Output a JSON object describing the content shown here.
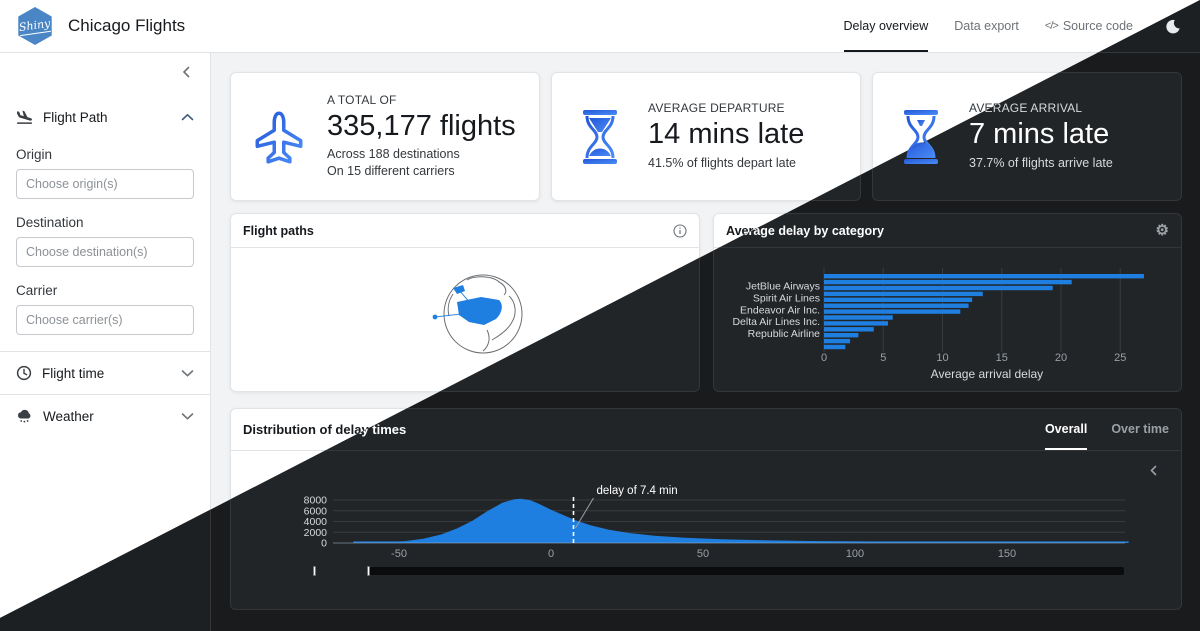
{
  "navbar": {
    "logo_text": "Shiny",
    "brand": "Chicago Flights",
    "tabs": [
      {
        "label": "Delay overview",
        "active": true
      },
      {
        "label": "Data export",
        "active": false
      },
      {
        "label": "Source code",
        "prefix": "</>",
        "active": false
      }
    ]
  },
  "sidebar": {
    "groups": {
      "flight_path": {
        "label": "Flight Path",
        "expanded": true
      },
      "flight_time": {
        "label": "Flight time",
        "expanded": false
      },
      "weather": {
        "label": "Weather",
        "expanded": false
      }
    },
    "fields": {
      "origin": {
        "label": "Origin",
        "placeholder": "Choose origin(s)",
        "value": ""
      },
      "destination": {
        "label": "Destination",
        "placeholder": "Choose destination(s)",
        "value": ""
      },
      "carrier": {
        "label": "Carrier",
        "placeholder": "Choose carrier(s)",
        "value": ""
      }
    }
  },
  "value_boxes": {
    "total": {
      "title": "A TOTAL OF",
      "value": "335,177 flights",
      "line1": "Across 188 destinations",
      "line2": "On 15 different carriers",
      "icon": "plane-icon"
    },
    "departure": {
      "title": "AVERAGE DEPARTURE",
      "value": "14 mins late",
      "line1": "41.5% of flights depart late",
      "icon": "hourglass-start-icon"
    },
    "arrival": {
      "title": "AVERAGE ARRIVAL",
      "value": "7 mins late",
      "line1": "37.7% of flights arrive late",
      "icon": "hourglass-end-icon"
    }
  },
  "cards": {
    "flight_paths": {
      "title": "Flight paths"
    },
    "avg_delay": {
      "title": "Average delay by category"
    },
    "distribution": {
      "title": "Distribution of delay times",
      "tab_overall": "Overall",
      "tab_over_time": "Over time"
    }
  },
  "chart_data": [
    {
      "type": "bar",
      "orientation": "horizontal",
      "title": "Average delay by category",
      "xlabel": "Average arrival delay",
      "x_ticks": [
        0,
        5,
        10,
        15,
        20,
        25
      ],
      "xlim": [
        0,
        27.5
      ],
      "legend": false,
      "grid": true,
      "bars": [
        {
          "label": "",
          "value": 27.0
        },
        {
          "label": "",
          "value": 20.9
        },
        {
          "label": "JetBlue Airways",
          "value": 19.3
        },
        {
          "label": "",
          "value": 13.4
        },
        {
          "label": "Spirit Air Lines",
          "value": 12.5
        },
        {
          "label": "",
          "value": 12.2
        },
        {
          "label": "Endeavor Air Inc.",
          "value": 11.5
        },
        {
          "label": "",
          "value": 5.8
        },
        {
          "label": "Delta Air Lines Inc.",
          "value": 5.4
        },
        {
          "label": "",
          "value": 4.2
        },
        {
          "label": "Republic Airline",
          "value": 2.9
        },
        {
          "label": "",
          "value": 2.2
        },
        {
          "label": "",
          "value": 1.8
        }
      ]
    },
    {
      "type": "histogram",
      "title": "Distribution of delay times",
      "tabs": [
        "Overall",
        "Over time"
      ],
      "x_ticks": [
        -50,
        0,
        50,
        100,
        150
      ],
      "y_ticks": [
        0,
        2000,
        4000,
        6000,
        8000
      ],
      "xlim": [
        -65,
        190
      ],
      "ylim": [
        0,
        8600
      ],
      "annotation": {
        "text": "delay of 7.4 min",
        "x": 7.4
      },
      "vline_x": 7.4,
      "grid": true,
      "points": [
        [
          -65,
          40
        ],
        [
          -55,
          150
        ],
        [
          -48,
          350
        ],
        [
          -42,
          800
        ],
        [
          -36,
          1600
        ],
        [
          -31,
          2700
        ],
        [
          -26,
          4100
        ],
        [
          -21,
          5900
        ],
        [
          -16,
          7500
        ],
        [
          -12,
          8150
        ],
        [
          -10,
          8250
        ],
        [
          -7,
          8000
        ],
        [
          -4,
          7300
        ],
        [
          0,
          6200
        ],
        [
          4,
          5200
        ],
        [
          8,
          4250
        ],
        [
          13,
          3300
        ],
        [
          19,
          2450
        ],
        [
          26,
          1850
        ],
        [
          34,
          1350
        ],
        [
          44,
          980
        ],
        [
          56,
          700
        ],
        [
          70,
          500
        ],
        [
          85,
          380
        ],
        [
          100,
          300
        ],
        [
          120,
          220
        ],
        [
          140,
          160
        ],
        [
          160,
          110
        ],
        [
          180,
          80
        ],
        [
          190,
          65
        ]
      ]
    }
  ],
  "colors": {
    "accent_blue": "#1f7fe0",
    "logo_blue": "#4a86c5",
    "icon_gradient": [
      "#2f6be0",
      "#4b8df8"
    ],
    "dark_background": "#191b1d",
    "dark_surface": "#222528",
    "light_background": "#f2f3f4"
  }
}
